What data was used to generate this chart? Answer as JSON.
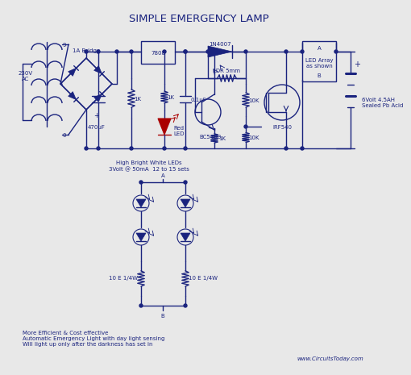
{
  "title": "SIMPLE EMERGENCY LAMP",
  "background_color": "#e8e8e8",
  "line_color": "#1a237e",
  "text_color": "#1a237e",
  "title_fontsize": 9.5,
  "small_fontsize": 5.0,
  "tiny_fontsize": 4.5,
  "footer_text": "More Efficient & Cost effective\nAutomatic Emergency Light with day light sensing\nWill light up only after the darkness has set in",
  "website": "www.CircuitsToday.com",
  "led_array_label": "LED Array\nas shown",
  "battery_label": "6Volt 4.5AH\nSealed Pb Acid",
  "led_section_label": "High Bright White LEDs\n3Volt @ 50mA  12 to 15 sets",
  "transformer_label_top": "1A Bridge",
  "transformer_label_left": "230V\nAC",
  "transformer_tap_9": "9",
  "transformer_tap_0": "0",
  "reg_label": "7808",
  "diode_label": "1N4007",
  "ldr_label": "LDR 5mm",
  "transistor_label": "BC548B",
  "mosfet_label": "IRF540",
  "red_led_label": "Red\nLED",
  "resistor_bottom_label": "10 E 1/4W",
  "cap_label": "470uF",
  "cap2_label": "0.1uF",
  "r1k_label": "1K",
  "r10k_label": "10K",
  "point_A": "A",
  "point_B": "B"
}
